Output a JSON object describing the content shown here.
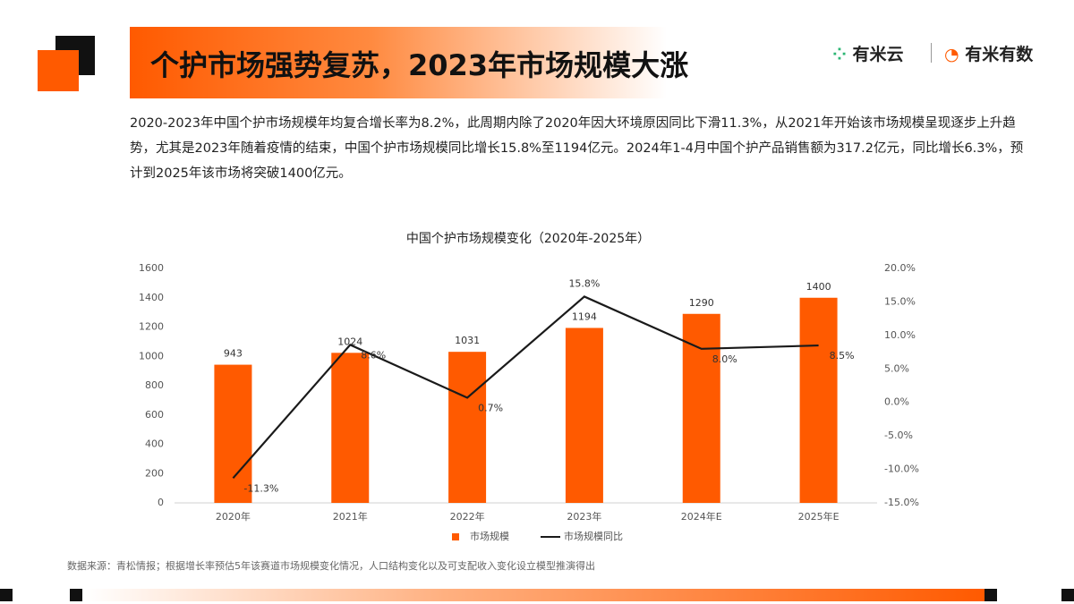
{
  "header": {
    "title": "个护市场强势复苏，2023年市场规模大涨",
    "logos": [
      "有米云",
      "有米有数"
    ]
  },
  "summary": "2020-2023年中国个护市场规模年均复合增长率为8.2%，此周期内除了2020年因大环境原因同比下滑11.3%，从2021年开始该市场规模呈现逐步上升趋势，尤其是2023年随着疫情的结束，中国个护市场规模同比增长15.8%至1194亿元。2024年1-4月中国个护产品销售额为317.2亿元，同比增长6.3%，预计到2025年该市场将突破1400亿元。",
  "source": "数据来源：青松情报；根据增长率预估5年该赛道市场规模变化情况，人口结构变化以及可支配收入变化设立模型推演得出",
  "chart_data": {
    "type": "bar",
    "title": "中国个护市场规模变化（2020年-2025年）",
    "categories": [
      "2020年",
      "2021年",
      "2022年",
      "2023年",
      "2024年E",
      "2025年E"
    ],
    "series": [
      {
        "name": "市场规模",
        "type": "bar",
        "color": "#ff5a00",
        "values": [
          943,
          1024,
          1031,
          1194,
          1290,
          1400
        ]
      },
      {
        "name": "市场规模同比",
        "type": "line",
        "axis": "y2",
        "color": "#1a1a1a",
        "values": [
          -11.3,
          8.6,
          0.7,
          15.8,
          8.0,
          8.5
        ],
        "value_labels": [
          "-11.3%",
          "8.6%",
          "0.7%",
          "15.8%",
          "8.0%",
          "8.5%"
        ]
      }
    ],
    "ylim": [
      0,
      1600
    ],
    "yticks": [
      0,
      200,
      400,
      600,
      800,
      1000,
      1200,
      1400,
      1600
    ],
    "y2lim": [
      -15,
      20
    ],
    "y2ticks": [
      {
        "value": -15,
        "label": "-15.0%"
      },
      {
        "value": -10,
        "label": "-10.0%"
      },
      {
        "value": -5,
        "label": "-5.0%"
      },
      {
        "value": 0,
        "label": "0.0%"
      },
      {
        "value": 5,
        "label": "5.0%"
      },
      {
        "value": 10,
        "label": "10.0%"
      },
      {
        "value": 15,
        "label": "15.0%"
      },
      {
        "value": 20,
        "label": "20.0%"
      }
    ],
    "legend": "bottom"
  }
}
